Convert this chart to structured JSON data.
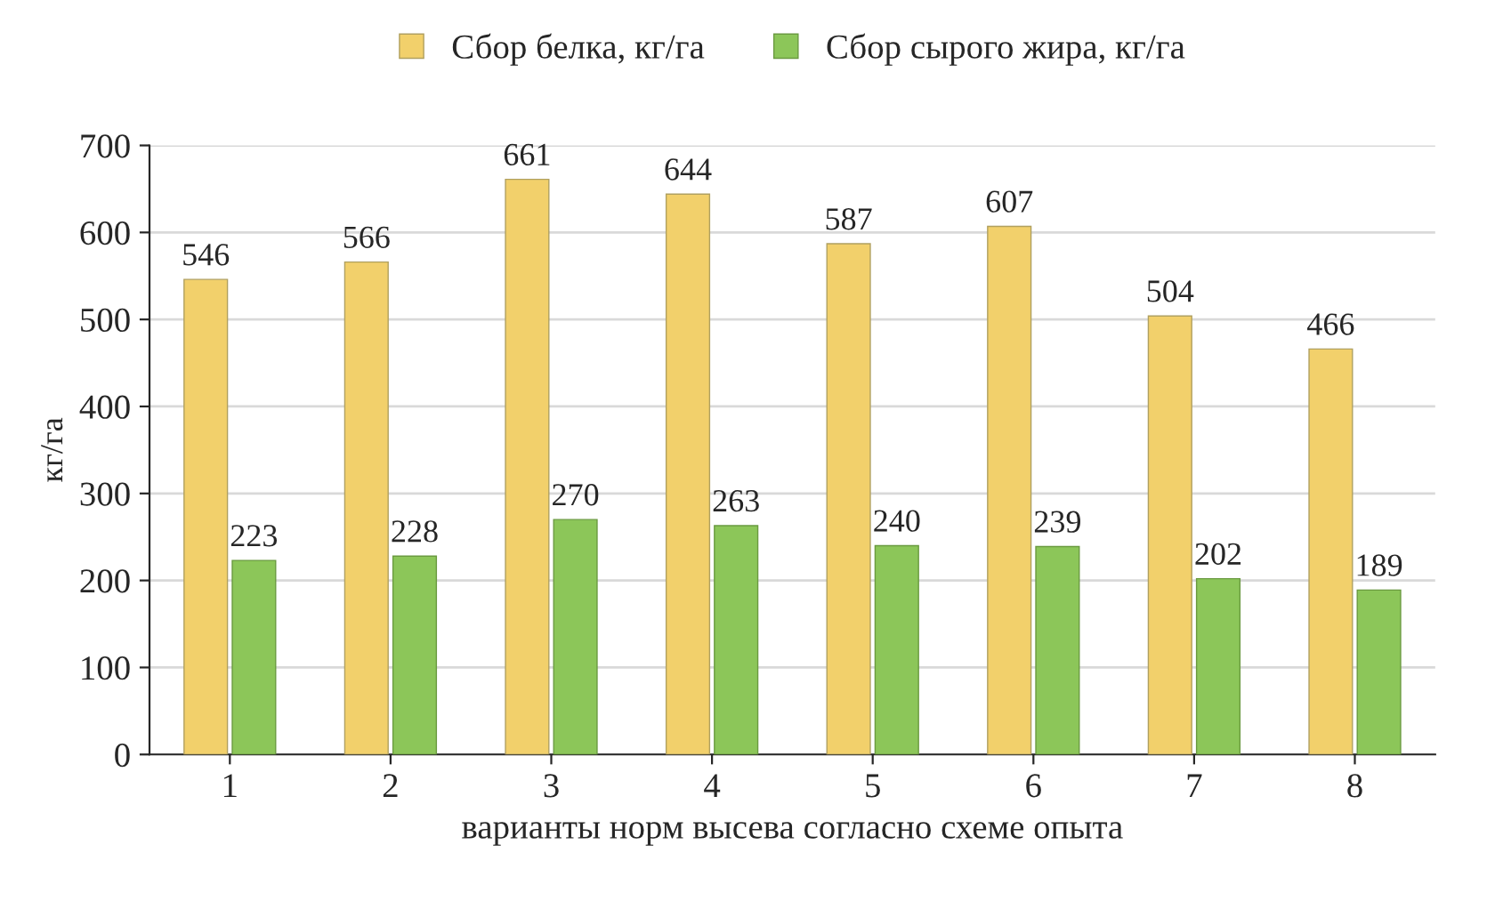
{
  "chart_data": {
    "type": "bar",
    "xlabel": "варианты норм высева согласно схеме опыта",
    "ylabel": "кг/га",
    "categories": [
      "1",
      "2",
      "3",
      "4",
      "5",
      "6",
      "7",
      "8"
    ],
    "series": [
      {
        "name": "Сбор белка, кг/га",
        "color": "#f2d06b",
        "values": [
          546,
          566,
          661,
          644,
          587,
          607,
          504,
          466
        ]
      },
      {
        "name": "Сбор сырого жира, кг/га",
        "color": "#8cc659",
        "values": [
          223,
          228,
          270,
          263,
          240,
          239,
          202,
          189
        ]
      }
    ],
    "ylim": [
      0,
      700
    ],
    "yticks": [
      0,
      100,
      200,
      300,
      400,
      500,
      600,
      700
    ],
    "grid": "y",
    "legend": "top",
    "data_labels": true
  }
}
